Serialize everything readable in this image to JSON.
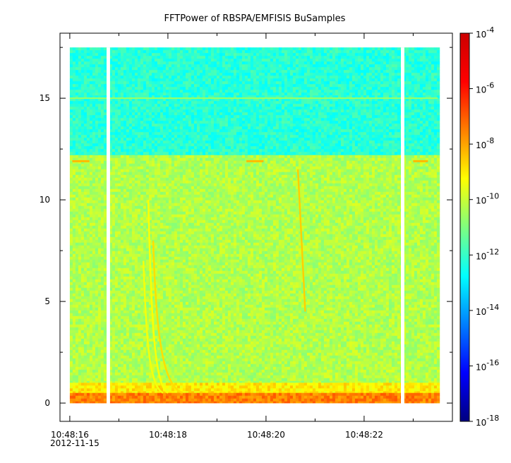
{
  "chart_data": {
    "type": "heatmap",
    "title": "FFTPower of RBSPA/EMFISIS  BuSamples",
    "xlabel": "",
    "ylabel": "",
    "x_start_label": "2012-11-15",
    "x_tick_labels": [
      "10:48:16",
      "10:48:18",
      "10:48:20",
      "10:48:22"
    ],
    "x_tick_values": [
      0,
      2,
      4,
      6
    ],
    "x_range_seconds": [
      -0.2,
      7.8
    ],
    "y_range": [
      -0.9,
      18.2
    ],
    "y_ticks": [
      0,
      5,
      10,
      15
    ],
    "y_data_top": 17.5,
    "colorbar": {
      "scale": "log",
      "range_exponent": [
        -18,
        -4
      ],
      "tick_base": "10",
      "tick_exponents": [
        "-4",
        "-6",
        "-8",
        "-10",
        "-12",
        "-14",
        "-16",
        "-18"
      ],
      "colormap": [
        "#00007f",
        "#0000ff",
        "#007fff",
        "#00ffff",
        "#7fff7f",
        "#ffff00",
        "#ff7f00",
        "#ff0000",
        "#cc0000"
      ]
    },
    "data_gaps_seconds": [
      [
        0.75,
        0.82
      ],
      [
        6.75,
        6.82
      ]
    ],
    "bands": [
      {
        "y_range": [
          12.2,
          17.5
        ],
        "log_power": -12.2
      },
      {
        "y_range": [
          1.0,
          12.2
        ],
        "log_power": -10.3
      },
      {
        "y_range": [
          0.5,
          1.0
        ],
        "log_power": -9.0
      },
      {
        "y_range": [
          0.0,
          0.5
        ],
        "log_power": -7.5
      }
    ],
    "features": [
      {
        "kind": "line",
        "y": 15.0,
        "log_power": -10.6
      },
      {
        "kind": "segment",
        "x": [
          0.05,
          0.4
        ],
        "y": 11.9,
        "log_power": -8.3
      },
      {
        "kind": "segment",
        "x": [
          3.6,
          3.95
        ],
        "y": 11.9,
        "log_power": -8.3
      },
      {
        "kind": "segment",
        "x": [
          7.0,
          7.3
        ],
        "y": 11.9,
        "log_power": -8.3
      },
      {
        "kind": "chorus",
        "x_top": 1.7,
        "y_top": 8.0,
        "x_bottom": 2.3,
        "log_power": -8.8
      },
      {
        "kind": "chorus",
        "x_top": 1.6,
        "y_top": 10.0,
        "x_bottom": 2.0,
        "log_power": -9.3
      },
      {
        "kind": "chorus",
        "x_top": 1.5,
        "y_top": 7.0,
        "x_bottom": 1.9,
        "log_power": -9.4
      },
      {
        "kind": "streak",
        "x": [
          4.65,
          4.8
        ],
        "y": [
          11.5,
          4.5
        ],
        "log_power": -8.6
      }
    ]
  }
}
